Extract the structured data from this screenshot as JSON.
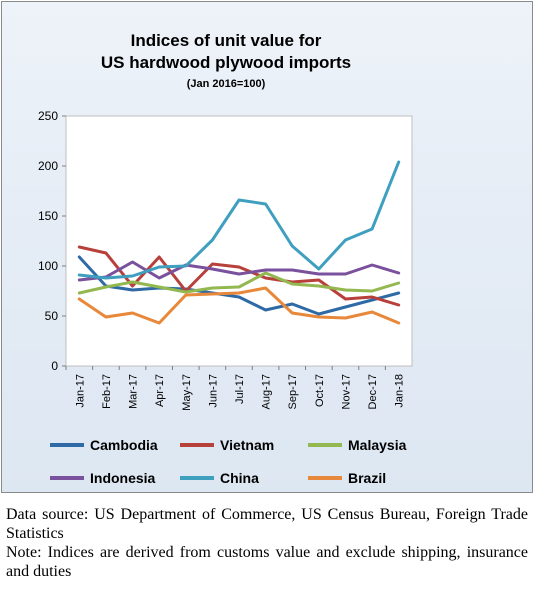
{
  "chart_data": {
    "type": "line",
    "title": "Indices of unit value for",
    "subtitle": "US hardwood plywood imports",
    "base_note": "(Jan 2016=100)",
    "xlabel": "",
    "ylabel": "",
    "ylim": [
      0,
      250
    ],
    "yticks": [
      0,
      50,
      100,
      150,
      200,
      250
    ],
    "grid": false,
    "legend_position": "bottom",
    "categories": [
      "Jan-17",
      "Feb-17",
      "Mar-17",
      "Apr-17",
      "May-17",
      "Jun-17",
      "Jul-17",
      "Aug-17",
      "Sep-17",
      "Oct-17",
      "Nov-17",
      "Dec-17",
      "Jan-18"
    ],
    "series": [
      {
        "name": "Cambodia",
        "color": "#2e6aa6",
        "values": [
          109,
          80,
          76,
          78,
          77,
          73,
          69,
          56,
          62,
          52,
          59,
          66,
          73
        ]
      },
      {
        "name": "Vietnam",
        "color": "#b8403a",
        "values": [
          119,
          113,
          80,
          109,
          75,
          102,
          99,
          88,
          84,
          86,
          67,
          69,
          61
        ]
      },
      {
        "name": "Malaysia",
        "color": "#93b84f",
        "values": [
          73,
          79,
          84,
          79,
          74,
          78,
          79,
          93,
          82,
          80,
          76,
          75,
          83
        ]
      },
      {
        "name": "Indonesia",
        "color": "#7a519c",
        "values": [
          86,
          89,
          104,
          88,
          101,
          97,
          92,
          96,
          96,
          92,
          92,
          101,
          93
        ]
      },
      {
        "name": "China",
        "color": "#3f9fbf",
        "values": [
          91,
          88,
          90,
          99,
          100,
          126,
          166,
          162,
          120,
          97,
          126,
          137,
          204
        ]
      },
      {
        "name": "Brazil",
        "color": "#e8883a",
        "values": [
          67,
          49,
          53,
          43,
          71,
          72,
          73,
          78,
          53,
          49,
          48,
          54,
          43
        ]
      }
    ]
  },
  "notes": {
    "source": "Data source: US Department of Commerce, US Census Bureau, Foreign Trade Statistics",
    "indices": "Note: Indices are derived from customs value and exclude shipping, insurance and duties"
  }
}
